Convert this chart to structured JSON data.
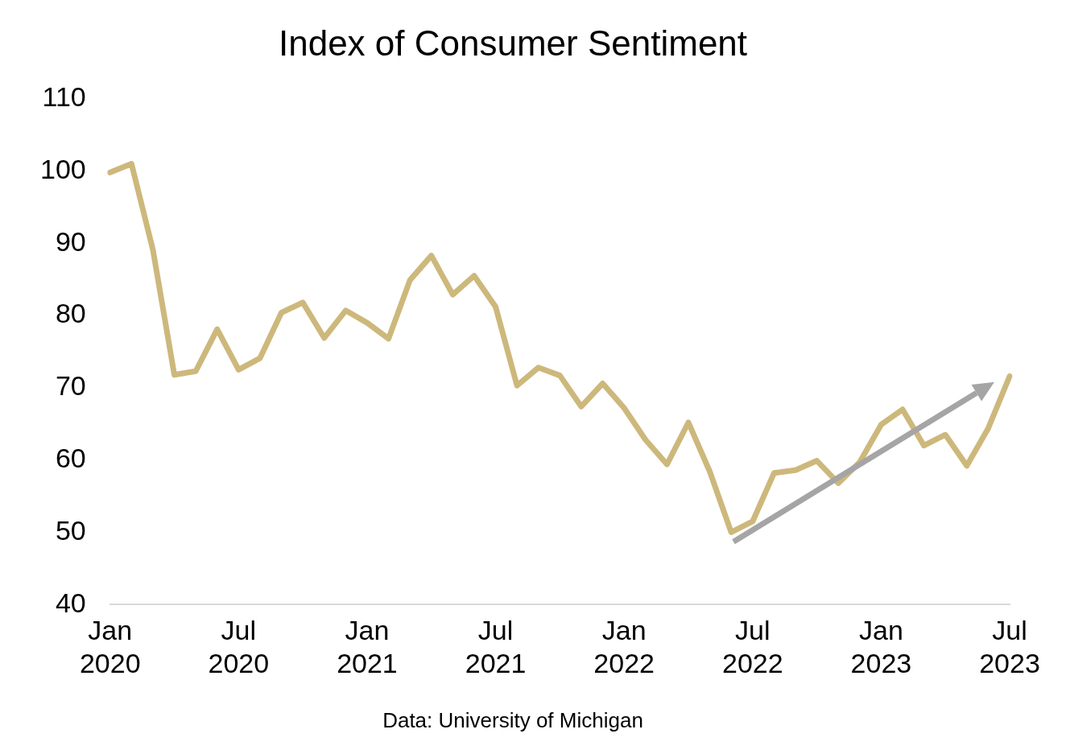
{
  "chart_data": {
    "type": "line",
    "title": "Index of Consumer Sentiment",
    "categories": [
      "Jan 2020",
      null,
      null,
      null,
      null,
      null,
      "Jul 2020",
      null,
      null,
      null,
      null,
      null,
      "Jan 2021",
      null,
      null,
      null,
      null,
      null,
      "Jul 2021",
      null,
      null,
      null,
      null,
      null,
      "Jan 2022",
      null,
      null,
      null,
      null,
      null,
      "Jul 2022",
      null,
      null,
      null,
      null,
      null,
      "Jan 2023",
      null,
      null,
      null,
      null,
      null,
      "Jul 2023"
    ],
    "series": [
      {
        "color": "#cdb87c",
        "values": [
          99.8,
          101.0,
          89.1,
          71.8,
          72.3,
          78.1,
          72.5,
          74.1,
          80.4,
          81.8,
          76.9,
          80.7,
          79.0,
          76.8,
          84.9,
          88.3,
          82.9,
          85.5,
          81.2,
          70.3,
          72.8,
          71.7,
          67.4,
          70.6,
          67.2,
          62.8,
          59.4,
          65.2,
          58.4,
          50.0,
          51.5,
          58.2,
          58.6,
          59.9,
          56.8,
          59.7,
          64.9,
          67.0,
          62.0,
          63.5,
          59.2,
          64.4,
          71.6
        ]
      }
    ],
    "ylim": [
      40,
      110
    ],
    "yticks": [
      40,
      50,
      60,
      70,
      80,
      90,
      100,
      110
    ],
    "grid": false,
    "legend": false,
    "marker": "none",
    "line_style": "solid",
    "annotations": [
      "Data: University of Michigan"
    ]
  }
}
